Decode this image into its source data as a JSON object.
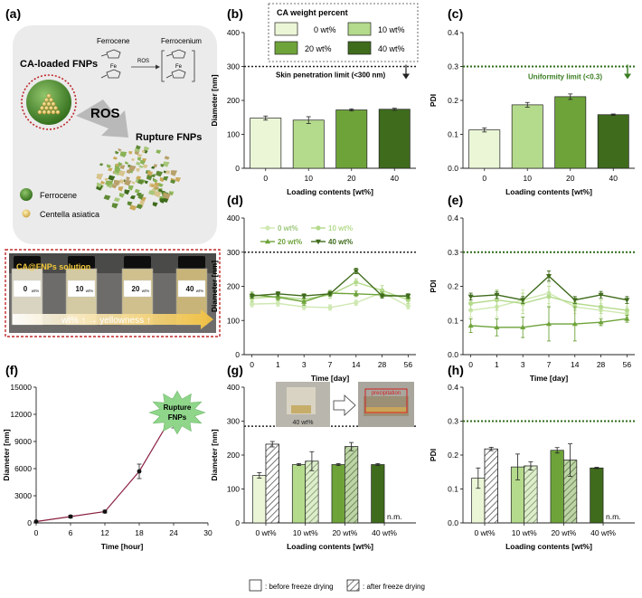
{
  "colors": {
    "c0": "#eaf6d6",
    "c10": "#b4da8c",
    "c20": "#6ea33a",
    "c40": "#3f6b1c",
    "dash": "#2e6b1a",
    "navy": "#2b2b2b",
    "pink": "#8a2040",
    "panel_bg": "#ebebeb",
    "np_green": "#3a7d22"
  },
  "panel_labels": [
    "(a)",
    "(b)",
    "(c)",
    "(d)",
    "(e)",
    "(f)",
    "(g)",
    "(h)"
  ],
  "legend": {
    "title": "CA weight percent",
    "items": [
      "0 wt%",
      "10 wt%",
      "20 wt%",
      "40 wt%"
    ]
  },
  "schematic": {
    "title": "CA-loaded FNPs",
    "ferrocene": "Ferrocene",
    "ferrocenium": "Ferrocenium",
    "ros_small": "ROS",
    "ros_big": "ROS",
    "rupture": "Rupture FNPs",
    "legend_ferrocene": "Ferrocene",
    "legend_ca": "Centella asiatica",
    "fe": "Fe"
  },
  "photo": {
    "title": "CA@FNPs solution",
    "vials": [
      "0",
      "10",
      "20",
      "40"
    ],
    "vial_unit": "wt%",
    "caption": "wt% ↑ → yellowness ↑"
  },
  "burst": {
    "line1": "Rupture",
    "line2": "FNPs"
  },
  "inset": {
    "label": "40 wt%",
    "tag": "precipitation"
  },
  "bottom_legend": [
    ": before freeze drying",
    ": after freeze drying"
  ],
  "chart_data": [
    {
      "id": "b",
      "type": "bar",
      "categories": [
        "0",
        "10",
        "20",
        "40"
      ],
      "values": [
        148,
        142,
        172,
        174
      ],
      "errors": [
        6,
        10,
        3,
        3
      ],
      "xlabel": "Loading contents [wt%]",
      "ylabel": "Diameter [nm]",
      "ylim": [
        0,
        400
      ],
      "yticks": [
        0,
        100,
        200,
        300,
        400
      ],
      "threshold": 300,
      "threshold_label": "Skin penetration limit (<300 nm)"
    },
    {
      "id": "c",
      "type": "bar",
      "categories": [
        "0",
        "10",
        "20",
        "40"
      ],
      "values": [
        0.113,
        0.187,
        0.211,
        0.158
      ],
      "errors": [
        0.006,
        0.007,
        0.008,
        0.002
      ],
      "xlabel": "Loading contents [wt%]",
      "ylabel": "PDI",
      "ylim": [
        0,
        0.4
      ],
      "yticks": [
        "0.0",
        "0.1",
        "0.2",
        "0.3",
        "0.4"
      ],
      "threshold": 0.3,
      "threshold_label": "Uniformity limit (<0.3)"
    },
    {
      "id": "d",
      "type": "line",
      "x": [
        "0",
        "1",
        "3",
        "7",
        "14",
        "28",
        "56"
      ],
      "series": [
        {
          "name": "0 wt%",
          "values": [
            148,
            150,
            140,
            138,
            152,
            182,
            142
          ],
          "errors": [
            8,
            8,
            8,
            8,
            8,
            10,
            8
          ]
        },
        {
          "name": "10 wt%",
          "values": [
            165,
            170,
            162,
            175,
            212,
            188,
            160
          ],
          "errors": [
            10,
            12,
            10,
            10,
            10,
            14,
            10
          ]
        },
        {
          "name": "20 wt%",
          "values": [
            175,
            168,
            155,
            180,
            178,
            175,
            170
          ],
          "errors": [
            8,
            8,
            10,
            8,
            8,
            8,
            8
          ]
        },
        {
          "name": "40 wt%",
          "values": [
            172,
            178,
            172,
            178,
            245,
            172,
            172
          ],
          "errors": [
            6,
            6,
            6,
            6,
            8,
            6,
            6
          ]
        }
      ],
      "xlabel": "Time [day]",
      "ylabel": "Diameter [nm]",
      "ylim": [
        0,
        400
      ],
      "yticks": [
        0,
        100,
        200,
        300,
        400
      ],
      "threshold": 300
    },
    {
      "id": "e",
      "type": "line",
      "x": [
        "0",
        "1",
        "3",
        "7",
        "14",
        "28",
        "56"
      ],
      "series": [
        {
          "name": "0 wt%",
          "values": [
            0.13,
            0.14,
            0.16,
            0.18,
            0.14,
            0.13,
            0.12
          ],
          "errors": [
            0.02,
            0.03,
            0.03,
            0.03,
            0.02,
            0.02,
            0.02
          ]
        },
        {
          "name": "10 wt%",
          "values": [
            0.15,
            0.16,
            0.15,
            0.17,
            0.15,
            0.14,
            0.13
          ],
          "errors": [
            0.02,
            0.03,
            0.03,
            0.03,
            0.02,
            0.02,
            0.02
          ]
        },
        {
          "name": "20 wt%",
          "values": [
            0.085,
            0.08,
            0.08,
            0.09,
            0.09,
            0.095,
            0.105
          ],
          "errors": [
            0.02,
            0.025,
            0.03,
            0.05,
            0.05,
            0.01,
            0.01
          ]
        },
        {
          "name": "40 wt%",
          "values": [
            0.17,
            0.175,
            0.16,
            0.23,
            0.16,
            0.175,
            0.16
          ],
          "errors": [
            0.01,
            0.01,
            0.01,
            0.015,
            0.01,
            0.01,
            0.01
          ]
        }
      ],
      "xlabel": "Time [day]",
      "ylabel": "PDI",
      "ylim": [
        0,
        0.4
      ],
      "yticks": [
        "0.0",
        "0.1",
        "0.2",
        "0.3",
        "0.4"
      ],
      "threshold": 0.3
    },
    {
      "id": "f",
      "type": "line",
      "x": [
        0,
        6,
        12,
        18,
        24
      ],
      "series": [
        {
          "values": [
            150,
            700,
            1250,
            5700,
            12100
          ],
          "errors": [
            50,
            150,
            150,
            800,
            1600
          ]
        }
      ],
      "xlabel": "Time [hour]",
      "ylabel": "Diameter [nm]",
      "xlim": [
        0,
        30
      ],
      "xticks": [
        0,
        6,
        12,
        18,
        24,
        30
      ],
      "ylim": [
        0,
        15000
      ],
      "yticks": [
        0,
        3000,
        6000,
        9000,
        12000,
        15000
      ]
    },
    {
      "id": "g",
      "type": "bar",
      "categories": [
        "0 wt%",
        "10 wt%",
        "20 wt%",
        "40 wt%"
      ],
      "series": [
        {
          "name": "before freeze drying",
          "values": [
            140,
            172,
            172,
            172
          ],
          "errors": [
            8,
            3,
            3,
            3
          ]
        },
        {
          "name": "after freeze drying",
          "values": [
            232,
            182,
            225,
            null
          ],
          "errors": [
            8,
            28,
            12,
            null
          ]
        }
      ],
      "annotation": "n.m.",
      "xlabel": "Loading contents [wt%]",
      "ylabel": "Diameter [nm]",
      "ylim": [
        0,
        400
      ],
      "yticks": [
        0,
        100,
        200,
        300,
        400
      ],
      "threshold": 285
    },
    {
      "id": "h",
      "type": "bar",
      "categories": [
        "0 wt%",
        "10 wt%",
        "20 wt%",
        "40 wt%"
      ],
      "series": [
        {
          "name": "before freeze drying",
          "values": [
            0.132,
            0.165,
            0.214,
            0.162
          ],
          "errors": [
            0.03,
            0.038,
            0.008,
            0.002
          ]
        },
        {
          "name": "after freeze drying",
          "values": [
            0.218,
            0.168,
            0.185,
            null
          ],
          "errors": [
            0.005,
            0.012,
            0.048,
            null
          ]
        }
      ],
      "annotation": "n.m.",
      "xlabel": "Loading contents [wt%]",
      "ylabel": "PDI",
      "ylim": [
        0,
        0.4
      ],
      "yticks": [
        "0.0",
        "0.1",
        "0.2",
        "0.3",
        "0.4"
      ],
      "threshold": 0.3
    }
  ]
}
